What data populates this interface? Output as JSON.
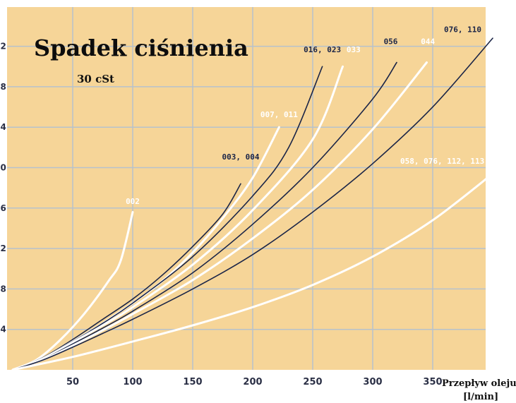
{
  "chart_data": {
    "type": "line",
    "title": "Spadek ciśnienia",
    "subtitle": "30 cSt",
    "xlabel_line1": "Przepływ oleju",
    "xlabel_line2": "[l/min]",
    "xlim": [
      0,
      400
    ],
    "xticks": [
      50,
      100,
      150,
      200,
      250,
      300,
      350
    ],
    "ylim": [
      0,
      8
    ],
    "yticks": [
      1,
      2,
      3,
      4,
      5,
      6,
      7,
      8
    ],
    "ytick_labels": [
      ".4",
      ".8",
      ".2",
      ".6",
      ".0",
      ".4",
      ".8",
      ".2"
    ],
    "grid": true,
    "colors": {
      "background": "#F6D598",
      "grid": "#B7C2CC",
      "dark": "#1B2547",
      "light": "#FFFFFF"
    },
    "series": [
      {
        "name": "002",
        "color": "light",
        "points": [
          [
            0,
            0
          ],
          [
            20,
            0.25
          ],
          [
            40,
            0.75
          ],
          [
            60,
            1.4
          ],
          [
            80,
            2.2
          ],
          [
            90,
            2.7
          ],
          [
            100,
            3.9
          ]
        ],
        "label_at": [
          100,
          4.1
        ]
      },
      {
        "name": "003, 004",
        "color": "dark",
        "points": [
          [
            0,
            0
          ],
          [
            25,
            0.3
          ],
          [
            50,
            0.75
          ],
          [
            75,
            1.25
          ],
          [
            100,
            1.75
          ],
          [
            125,
            2.35
          ],
          [
            150,
            3.05
          ],
          [
            175,
            3.85
          ],
          [
            190,
            4.6
          ]
        ],
        "label_at": [
          190,
          5.2
        ]
      },
      {
        "name": "007, 011",
        "color": "light",
        "points": [
          [
            0,
            0
          ],
          [
            25,
            0.28
          ],
          [
            50,
            0.7
          ],
          [
            75,
            1.15
          ],
          [
            100,
            1.65
          ],
          [
            125,
            2.2
          ],
          [
            150,
            2.9
          ],
          [
            175,
            3.75
          ],
          [
            200,
            4.75
          ],
          [
            222,
            6.0
          ]
        ],
        "label_at": [
          222,
          6.25
        ]
      },
      {
        "name": "016, 023",
        "color": "dark",
        "points": [
          [
            0,
            0
          ],
          [
            25,
            0.28
          ],
          [
            50,
            0.7
          ],
          [
            75,
            1.15
          ],
          [
            100,
            1.65
          ],
          [
            150,
            2.8
          ],
          [
            200,
            4.3
          ],
          [
            230,
            5.5
          ],
          [
            258,
            7.5
          ]
        ],
        "label_at": [
          258,
          7.85
        ]
      },
      {
        "name": "033",
        "color": "light",
        "points": [
          [
            0,
            0
          ],
          [
            25,
            0.27
          ],
          [
            50,
            0.68
          ],
          [
            75,
            1.1
          ],
          [
            100,
            1.55
          ],
          [
            150,
            2.6
          ],
          [
            200,
            3.95
          ],
          [
            250,
            5.7
          ],
          [
            275,
            7.5
          ]
        ],
        "label_at": [
          284,
          7.85
        ]
      },
      {
        "name": "056",
        "color": "dark",
        "points": [
          [
            0,
            0
          ],
          [
            25,
            0.26
          ],
          [
            50,
            0.64
          ],
          [
            75,
            1.03
          ],
          [
            100,
            1.45
          ],
          [
            150,
            2.4
          ],
          [
            200,
            3.6
          ],
          [
            250,
            5.0
          ],
          [
            300,
            6.7
          ],
          [
            320,
            7.6
          ]
        ],
        "label_at": [
          315,
          8.05
        ]
      },
      {
        "name": "044",
        "color": "light",
        "points": [
          [
            0,
            0
          ],
          [
            25,
            0.25
          ],
          [
            50,
            0.6
          ],
          [
            75,
            0.98
          ],
          [
            100,
            1.38
          ],
          [
            150,
            2.22
          ],
          [
            200,
            3.25
          ],
          [
            250,
            4.45
          ],
          [
            300,
            5.95
          ],
          [
            345,
            7.6
          ]
        ],
        "label_at": [
          346,
          8.05
        ]
      },
      {
        "name": "076, 110",
        "color": "dark",
        "points": [
          [
            0,
            0
          ],
          [
            25,
            0.24
          ],
          [
            50,
            0.56
          ],
          [
            75,
            0.9
          ],
          [
            100,
            1.25
          ],
          [
            150,
            2.0
          ],
          [
            200,
            2.85
          ],
          [
            250,
            3.9
          ],
          [
            300,
            5.1
          ],
          [
            350,
            6.5
          ],
          [
            400,
            8.2
          ]
        ],
        "label_at": [
          375,
          8.35
        ]
      },
      {
        "name": "058, 076, 112, 113",
        "color": "light",
        "points": [
          [
            0,
            0
          ],
          [
            50,
            0.32
          ],
          [
            100,
            0.7
          ],
          [
            150,
            1.1
          ],
          [
            200,
            1.55
          ],
          [
            250,
            2.1
          ],
          [
            300,
            2.8
          ],
          [
            350,
            3.7
          ],
          [
            400,
            4.85
          ]
        ],
        "label_at": [
          358,
          5.1
        ]
      }
    ]
  }
}
